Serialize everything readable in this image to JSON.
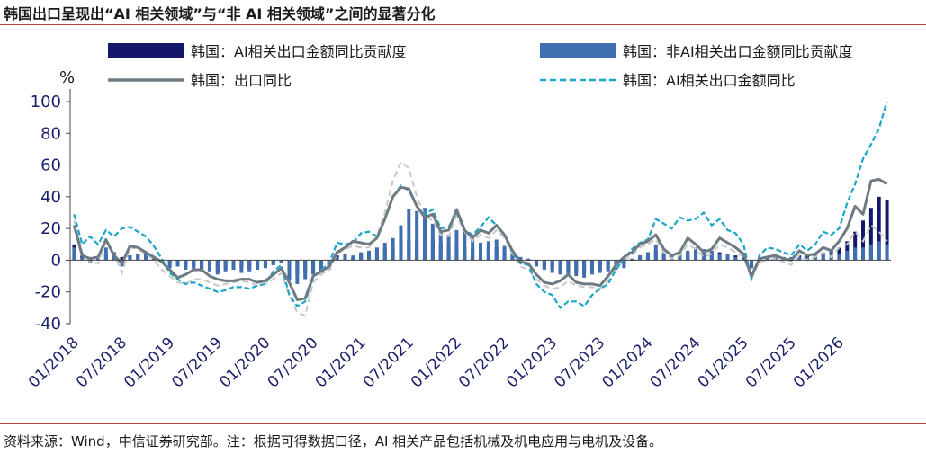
{
  "title": "韩国出口呈现出“AI 相关领域”与“非 AI 相关领域”之间的显著分化",
  "source": "资料来源：Wind，中信证券研究部。注：根据可得数据口径，AI 相关产品包括机械及机电应用与电机及设备。",
  "colors": {
    "ai_bar": "#15186a",
    "non_ai_bar": "#3f6fb0",
    "export_line": "#6e7b82",
    "ai_line": "#1aa6c8",
    "dashed_grey": "#c8c8c8",
    "axis": "#1b1f6b",
    "rule": "#c23a3a"
  },
  "chart_data": {
    "type": "bar+line",
    "unit_label": "%",
    "ylim": [
      -40,
      100
    ],
    "yticks": [
      "100",
      "80",
      "60",
      "40",
      "20",
      "0",
      "-20",
      "-40"
    ],
    "xlabels": [
      "01/2018",
      "07/2018",
      "01/2019",
      "07/2019",
      "01/2020",
      "07/2020",
      "01/2021",
      "07/2021",
      "01/2022",
      "07/2022",
      "01/2023",
      "07/2023",
      "01/2024",
      "07/2024",
      "01/2025",
      "07/2025",
      "01/2026"
    ],
    "legend": [
      {
        "name": "韩国：AI相关出口金额同比贡献度",
        "style": "bar",
        "color": "#15186a"
      },
      {
        "name": "韩国：非AI相关出口金额同比贡献度",
        "style": "bar",
        "color": "#3f6fb0"
      },
      {
        "name": "韩国：出口同比",
        "style": "line",
        "color": "#6e7b82"
      },
      {
        "name": "韩国：AI相关出口金额同比",
        "style": "dashed",
        "color": "#1aa6c8"
      }
    ],
    "series": [
      {
        "name": "韩国：AI相关出口金额同比贡献度",
        "values": [
          10,
          3,
          2,
          1,
          4,
          5,
          2,
          3,
          4,
          3,
          1,
          0,
          -2,
          -3,
          -4,
          -4,
          -6,
          -6,
          -7,
          -6,
          -6,
          -5,
          -6,
          -5,
          -4,
          -3,
          -2,
          -5,
          -9,
          -8,
          -6,
          -5,
          -4,
          3,
          4,
          2,
          4,
          5,
          6,
          8,
          10,
          13,
          13,
          12,
          12,
          13,
          11,
          10,
          9,
          8,
          7,
          7,
          8,
          8,
          6,
          3,
          2,
          0,
          -3,
          -5,
          -6,
          -7,
          -7,
          -8,
          -8,
          -7,
          -6,
          -6,
          -4,
          -3,
          0,
          3,
          5,
          6,
          4,
          3,
          4,
          5,
          6,
          6,
          5,
          5,
          4,
          3,
          2,
          -5,
          0,
          2,
          1,
          2,
          1,
          3,
          3,
          4,
          4,
          6,
          8,
          12,
          18,
          25,
          33,
          40,
          38
        ]
      },
      {
        "name": "韩国：非AI相关出口金额同比贡献度",
        "values": [
          8,
          2,
          -2,
          1,
          8,
          3,
          -4,
          3,
          4,
          5,
          2,
          -2,
          -5,
          -4,
          -6,
          -6,
          -7,
          -7,
          -9,
          -7,
          -6,
          -8,
          -7,
          -6,
          -5,
          -3,
          -2,
          -13,
          -15,
          -12,
          -9,
          -8,
          -6,
          2,
          4,
          3,
          5,
          6,
          8,
          11,
          14,
          22,
          32,
          31,
          33,
          23,
          18,
          16,
          19,
          18,
          13,
          11,
          12,
          13,
          9,
          5,
          2,
          1,
          -4,
          -6,
          -8,
          -9,
          -9,
          -10,
          -11,
          -9,
          -8,
          -7,
          -6,
          -5,
          1,
          3,
          5,
          10,
          5,
          3,
          5,
          6,
          8,
          7,
          6,
          4,
          4,
          2,
          1,
          -5,
          1,
          2,
          2,
          1,
          2,
          2,
          2,
          3,
          4,
          5,
          4,
          6,
          8,
          8,
          10,
          12,
          10
        ]
      },
      {
        "name": "韩国：出口同比",
        "values": [
          22,
          3,
          1,
          2,
          13,
          3,
          -2,
          9,
          8,
          5,
          2,
          -1,
          -6,
          -11,
          -9,
          -6,
          -6,
          -10,
          -12,
          -13,
          -13,
          -12,
          -12,
          -14,
          -13,
          -9,
          -5,
          -14,
          -25,
          -24,
          -10,
          -7,
          -4,
          5,
          8,
          12,
          11,
          10,
          14,
          26,
          40,
          46,
          45,
          34,
          27,
          29,
          18,
          19,
          32,
          19,
          14,
          19,
          17,
          22,
          16,
          6,
          -1,
          -2,
          -9,
          -14,
          -15,
          -13,
          -9,
          -14,
          -15,
          -15,
          -16,
          -10,
          -3,
          2,
          5,
          10,
          12,
          16,
          7,
          3,
          5,
          14,
          10,
          5,
          7,
          14,
          11,
          8,
          4,
          -10,
          1,
          2,
          3,
          1,
          0,
          6,
          3,
          4,
          8,
          6,
          12,
          20,
          34,
          29,
          50,
          51,
          48
        ]
      },
      {
        "name": "韩国：AI相关出口金额同比",
        "values": [
          29,
          10,
          15,
          10,
          19,
          15,
          20,
          21,
          18,
          15,
          9,
          1,
          -8,
          -12,
          -15,
          -14,
          -16,
          -18,
          -20,
          -19,
          -17,
          -17,
          -18,
          -16,
          -15,
          -7,
          -3,
          -22,
          -29,
          -26,
          -11,
          -6,
          -2,
          11,
          10,
          11,
          17,
          18,
          15,
          26,
          40,
          47,
          44,
          34,
          29,
          32,
          20,
          21,
          30,
          19,
          16,
          21,
          27,
          22,
          16,
          5,
          -2,
          -3,
          -15,
          -20,
          -22,
          -30,
          -26,
          -26,
          -29,
          -22,
          -18,
          -15,
          -6,
          1,
          7,
          11,
          13,
          26,
          23,
          20,
          27,
          25,
          26,
          30,
          22,
          26,
          19,
          17,
          10,
          -12,
          3,
          8,
          7,
          5,
          3,
          10,
          6,
          10,
          18,
          16,
          20,
          36,
          48,
          64,
          73,
          83,
          100
        ]
      },
      {
        "name": "",
        "values": [
          25,
          5,
          -1,
          -2,
          12,
          4,
          -8,
          8,
          7,
          4,
          0,
          -6,
          -10,
          -14,
          -15,
          -12,
          -12,
          -14,
          -16,
          -15,
          -14,
          -13,
          -14,
          -16,
          -15,
          -12,
          -8,
          -22,
          -33,
          -35,
          -14,
          -9,
          -6,
          4,
          7,
          9,
          8,
          8,
          15,
          30,
          50,
          62,
          58,
          40,
          28,
          25,
          16,
          15,
          28,
          18,
          12,
          16,
          14,
          19,
          14,
          4,
          -4,
          -6,
          -12,
          -16,
          -18,
          -17,
          -13,
          -16,
          -17,
          -17,
          -18,
          -13,
          -5,
          0,
          3,
          8,
          10,
          13,
          5,
          1,
          3,
          10,
          7,
          2,
          4,
          10,
          8,
          5,
          2,
          -12,
          -1,
          0,
          1,
          -1,
          -3,
          3,
          0,
          2,
          5,
          2,
          8,
          10,
          18,
          12,
          22,
          18,
          12
        ]
      }
    ]
  }
}
